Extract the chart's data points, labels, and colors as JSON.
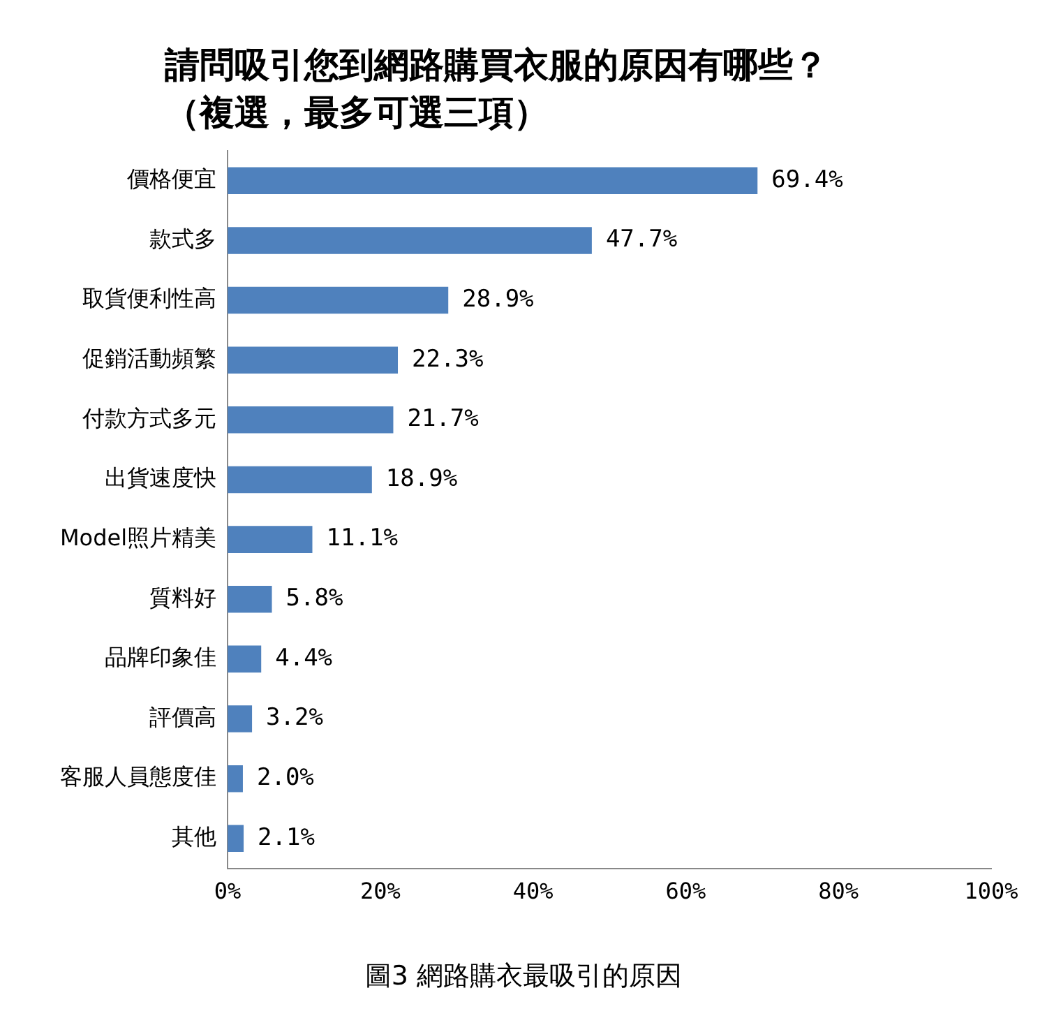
{
  "chart_data": {
    "type": "bar",
    "orientation": "horizontal",
    "title": "請問吸引您到網路購買衣服的原因有哪些？",
    "subtitle": "（複選，最多可選三項）",
    "categories": [
      "價格便宜",
      "款式多",
      "取貨便利性高",
      "促銷活動頻繁",
      "付款方式多元",
      "出貨速度快",
      "Model照片精美",
      "質料好",
      "品牌印象佳",
      "評價高",
      "客服人員態度佳",
      "其他"
    ],
    "values": [
      69.4,
      47.7,
      28.9,
      22.3,
      21.7,
      18.9,
      11.1,
      5.8,
      4.4,
      3.2,
      2.0,
      2.1
    ],
    "value_labels": [
      "69.4%",
      "47.7%",
      "28.9%",
      "22.3%",
      "21.7%",
      "18.9%",
      "11.1%",
      "5.8%",
      "4.4%",
      "3.2%",
      "2.0%",
      "2.1%"
    ],
    "color": "#4f81bd",
    "xlim": [
      0,
      100
    ],
    "xticks": [
      {
        "value": 0,
        "label": "0%"
      },
      {
        "value": 20,
        "label": "20%"
      },
      {
        "value": 40,
        "label": "40%"
      },
      {
        "value": 60,
        "label": "60%"
      },
      {
        "value": 80,
        "label": "80%"
      },
      {
        "value": 100,
        "label": "100%"
      }
    ],
    "grid": false,
    "legend": false,
    "annotations": [
      "圖3 網路購衣最吸引的原因"
    ]
  }
}
